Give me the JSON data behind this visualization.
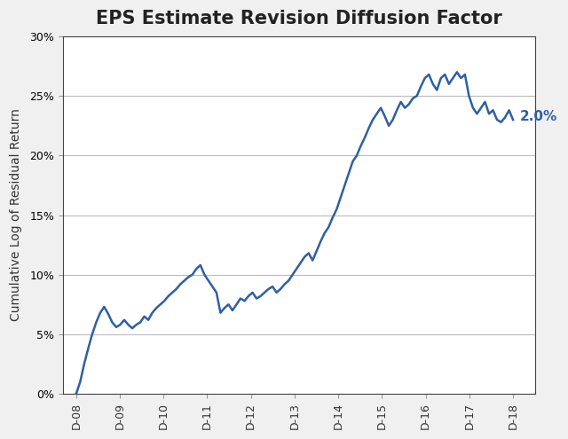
{
  "title": "EPS Estimate Revision Diffusion Factor",
  "ylabel": "Cumulative Log of Residual Return",
  "xlabel": "",
  "line_color": "#2E5FA3",
  "annotation_text": "2.0%",
  "annotation_color": "#2E5FA3",
  "annotation_fontsize": 11,
  "title_fontsize": 15,
  "ylabel_fontsize": 10,
  "ylim": [
    0.0,
    0.3
  ],
  "yticks": [
    0.0,
    0.05,
    0.1,
    0.15,
    0.2,
    0.25,
    0.3
  ],
  "xtick_labels": [
    "D-08",
    "D-09",
    "D-10",
    "D-11",
    "D-12",
    "D-13",
    "D-14",
    "D-15",
    "D-16",
    "D-17",
    "D-18"
  ],
  "background_color": "#ffffff",
  "figure_background": "#f0f0f0",
  "grid_color": "#bbbbbb",
  "line_width": 1.8,
  "x_values": [
    0,
    1,
    2,
    3,
    4,
    5,
    6,
    7,
    8,
    9,
    10,
    11,
    12,
    13,
    14,
    15,
    16,
    17,
    18,
    19,
    20,
    21,
    22,
    23,
    24,
    25,
    26,
    27,
    28,
    29,
    30,
    31,
    32,
    33,
    34,
    35,
    36,
    37,
    38,
    39,
    40,
    41,
    42,
    43,
    44,
    45,
    46,
    47,
    48,
    49,
    50,
    51,
    52,
    53,
    54,
    55,
    56,
    57,
    58,
    59,
    60,
    61,
    62,
    63,
    64,
    65,
    66,
    67,
    68,
    69,
    70,
    71,
    72,
    73,
    74,
    75,
    76,
    77,
    78,
    79,
    80,
    81,
    82,
    83,
    84,
    85,
    86,
    87,
    88,
    89,
    90,
    91,
    92,
    93,
    94,
    95,
    96,
    97,
    98,
    99,
    100,
    101,
    102,
    103,
    104,
    105,
    106,
    107,
    108,
    109
  ],
  "y_values": [
    0.0,
    0.01,
    0.025,
    0.038,
    0.05,
    0.06,
    0.068,
    0.073,
    0.067,
    0.06,
    0.056,
    0.058,
    0.062,
    0.058,
    0.055,
    0.058,
    0.06,
    0.065,
    0.062,
    0.068,
    0.072,
    0.075,
    0.078,
    0.082,
    0.085,
    0.088,
    0.092,
    0.095,
    0.098,
    0.1,
    0.105,
    0.108,
    0.1,
    0.095,
    0.09,
    0.085,
    0.068,
    0.072,
    0.075,
    0.07,
    0.075,
    0.08,
    0.078,
    0.082,
    0.085,
    0.08,
    0.082,
    0.085,
    0.088,
    0.09,
    0.085,
    0.088,
    0.092,
    0.095,
    0.1,
    0.105,
    0.11,
    0.115,
    0.118,
    0.112,
    0.12,
    0.128,
    0.135,
    0.14,
    0.148,
    0.155,
    0.165,
    0.175,
    0.185,
    0.195,
    0.2,
    0.208,
    0.215,
    0.223,
    0.23,
    0.235,
    0.24,
    0.233,
    0.225,
    0.23,
    0.238,
    0.245,
    0.24,
    0.243,
    0.248,
    0.25,
    0.258,
    0.265,
    0.268,
    0.26,
    0.255,
    0.265,
    0.268,
    0.26,
    0.265,
    0.27,
    0.265,
    0.268,
    0.25,
    0.24,
    0.235,
    0.24,
    0.245,
    0.235,
    0.238,
    0.23,
    0.228,
    0.232,
    0.238,
    0.23
  ]
}
